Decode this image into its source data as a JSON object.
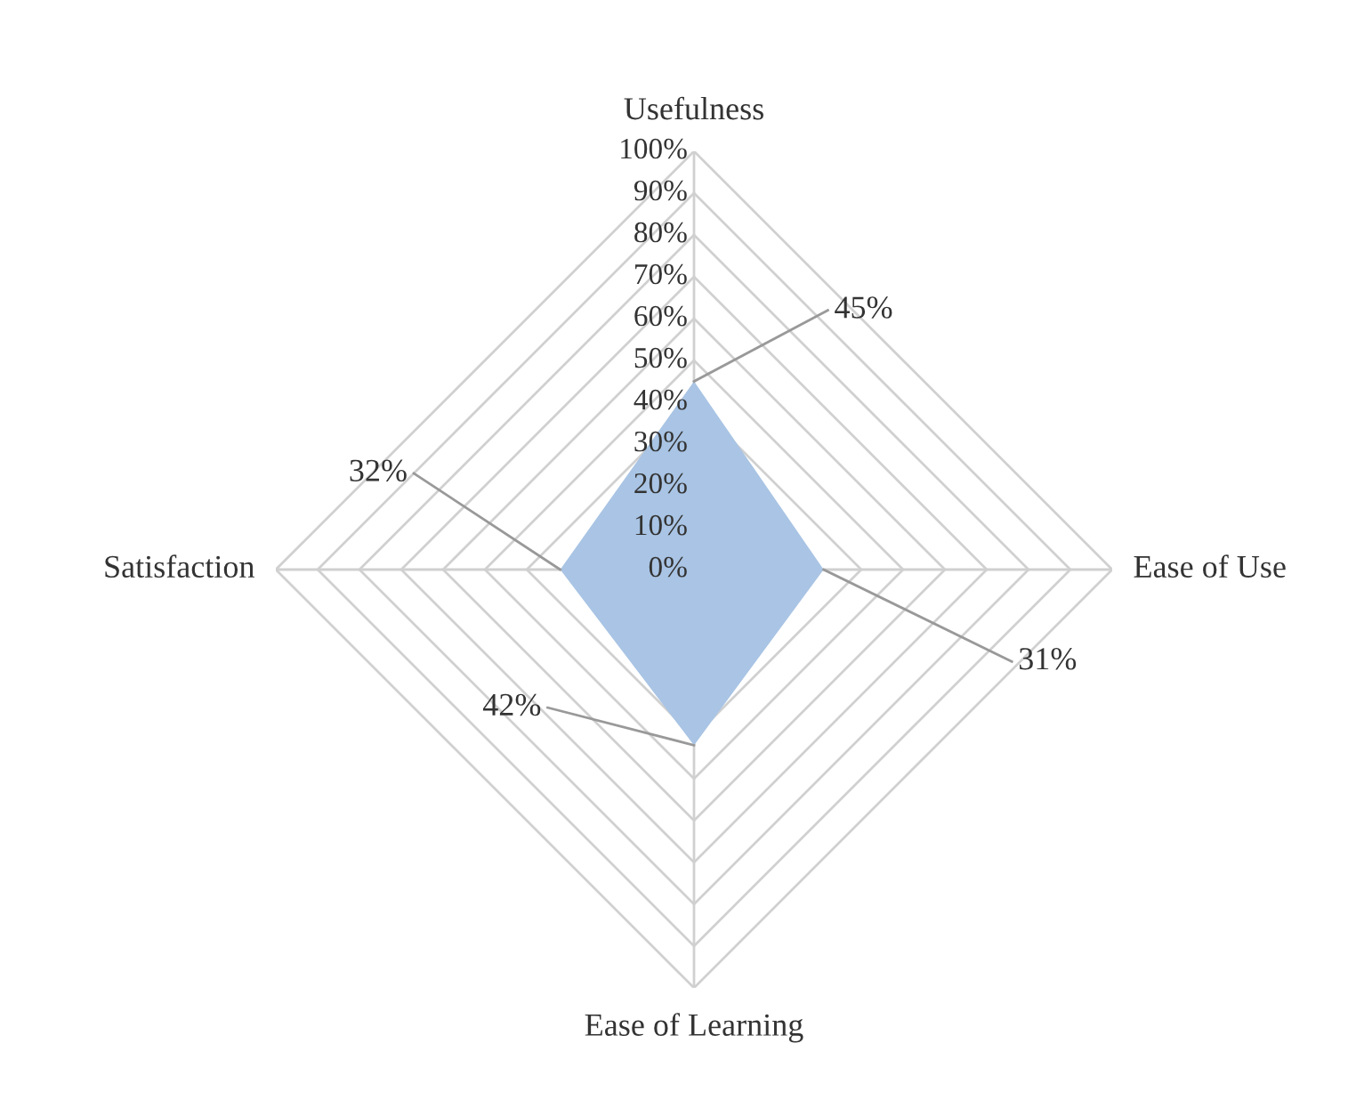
{
  "chart_data": {
    "type": "radar",
    "categories": [
      "Usefulness",
      "Ease of Use",
      "Ease of Learning",
      "Satisfaction"
    ],
    "series": [
      {
        "color": "#a9c4e4",
        "values": [
          45,
          31,
          42,
          32
        ]
      }
    ],
    "value_labels": [
      "45%",
      "31%",
      "42%",
      "32%"
    ],
    "ylim": [
      0,
      100
    ],
    "yticks": [
      {
        "value": 0,
        "label": "0%"
      },
      {
        "value": 10,
        "label": "10%"
      },
      {
        "value": 20,
        "label": "20%"
      },
      {
        "value": 30,
        "label": "30%"
      },
      {
        "value": 40,
        "label": "40%"
      },
      {
        "value": 50,
        "label": "50%"
      },
      {
        "value": 60,
        "label": "60%"
      },
      {
        "value": 70,
        "label": "70%"
      },
      {
        "value": 80,
        "label": "80%"
      },
      {
        "value": 90,
        "label": "90%"
      },
      {
        "value": 100,
        "label": "100%"
      }
    ],
    "grid": true
  }
}
